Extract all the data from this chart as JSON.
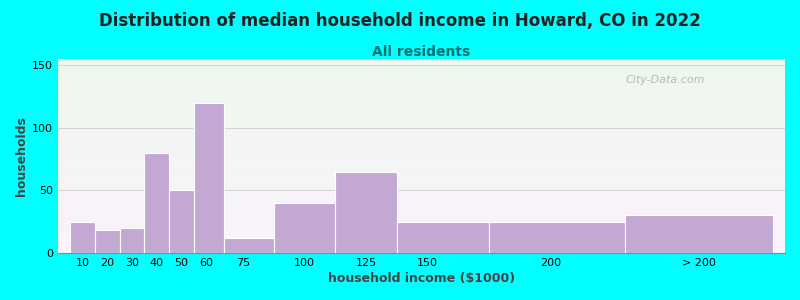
{
  "title": "Distribution of median household income in Howard, CO in 2022",
  "subtitle": "All residents",
  "xlabel": "household income ($1000)",
  "ylabel": "households",
  "bar_color": "#c4a8d4",
  "bar_edge_color": "#b090be",
  "background_outer": "#00ffff",
  "yticks": [
    0,
    50,
    100,
    150
  ],
  "ylim": [
    0,
    155
  ],
  "xtick_labels": [
    "10",
    "20",
    "30",
    "40",
    "50",
    "60",
    "75",
    "100",
    "125",
    "150",
    "200",
    "> 200"
  ],
  "xtick_positions": [
    10,
    20,
    30,
    40,
    50,
    60,
    75,
    100,
    125,
    150,
    200,
    260
  ],
  "bin_edges": [
    5,
    15,
    25,
    35,
    45,
    55,
    67.5,
    87.5,
    112.5,
    137.5,
    175,
    230,
    290
  ],
  "values": [
    25,
    18,
    20,
    80,
    50,
    120,
    12,
    40,
    65,
    25,
    25,
    30
  ],
  "watermark": "City-Data.com",
  "title_fontsize": 12,
  "subtitle_fontsize": 10,
  "subtitle_color": "#007070",
  "axis_label_fontsize": 9,
  "tick_fontsize": 8,
  "xlim_min": 0,
  "xlim_max": 295
}
